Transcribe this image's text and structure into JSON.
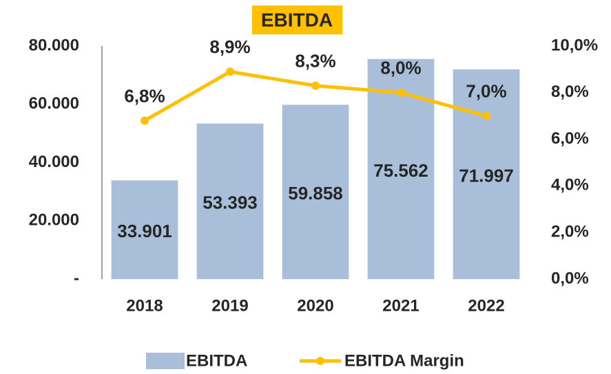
{
  "chart_data": {
    "type": "bar",
    "title": "EBITDA",
    "categories": [
      "2018",
      "2019",
      "2020",
      "2021",
      "2022"
    ],
    "series": [
      {
        "name": "EBITDA",
        "type": "bar",
        "color": "#a9bfd9",
        "values": [
          33901,
          53393,
          59858,
          75562,
          71997
        ],
        "value_labels": [
          "33.901",
          "53.393",
          "59.858",
          "75.562",
          "71.997"
        ]
      },
      {
        "name": "EBITDA Margin",
        "type": "line",
        "axis": "y2",
        "color": "#ffc000",
        "values": [
          6.8,
          8.9,
          8.3,
          8.0,
          7.0
        ],
        "value_labels": [
          "6,8%",
          "8,9%",
          "8,3%",
          "8,0%",
          "7,0%"
        ]
      }
    ],
    "ylim": [
      0,
      80000
    ],
    "yticks": [
      {
        "value": 0,
        "label": "-"
      },
      {
        "value": 20000,
        "label": "20.000"
      },
      {
        "value": 40000,
        "label": "40.000"
      },
      {
        "value": 60000,
        "label": "60.000"
      },
      {
        "value": 80000,
        "label": "80.000"
      }
    ],
    "y2lim": [
      0,
      10
    ],
    "y2ticks": [
      {
        "value": 0,
        "label": "0,0%"
      },
      {
        "value": 2,
        "label": "2,0%"
      },
      {
        "value": 4,
        "label": "4,0%"
      },
      {
        "value": 6,
        "label": "6,0%"
      },
      {
        "value": 8,
        "label": "8,0%"
      },
      {
        "value": 10,
        "label": "10,0%"
      }
    ],
    "grid": false,
    "legend": "bottom"
  }
}
